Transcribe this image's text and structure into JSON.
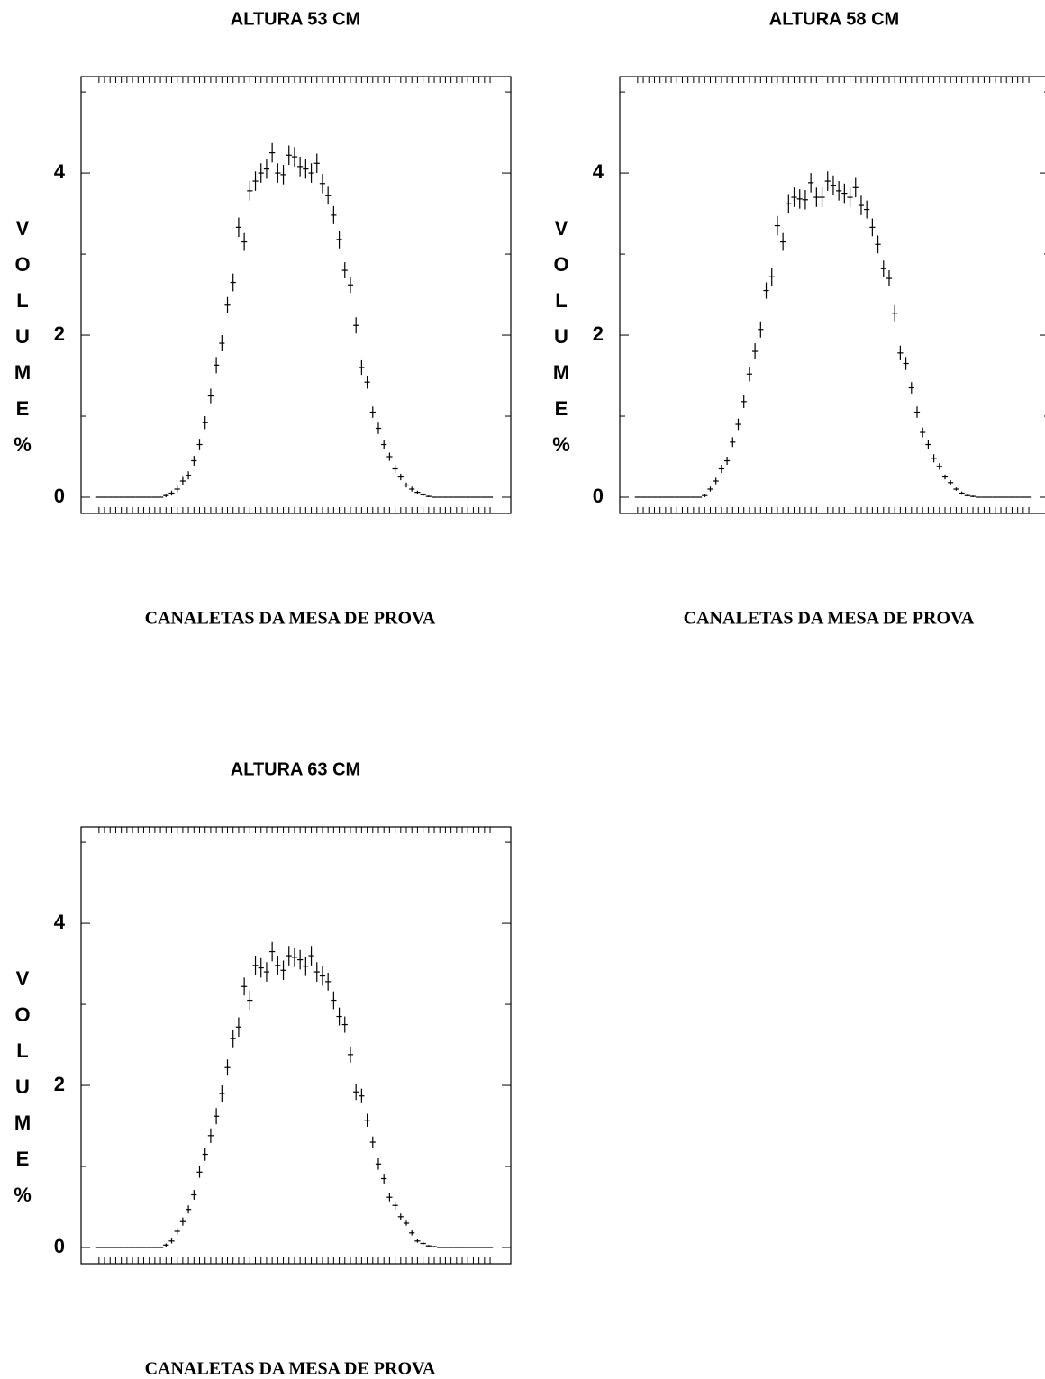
{
  "chart_data": [
    {
      "type": "errorbar",
      "title": "ALTURA 53 CM",
      "x_label": "CANALETAS DA MESA DE PROVA",
      "y_label": "VOLUME %",
      "color": "#000000",
      "x": [
        1,
        2,
        3,
        4,
        5,
        6,
        7,
        8,
        9,
        10,
        11,
        12,
        13,
        14,
        15,
        16,
        17,
        18,
        19,
        20,
        21,
        22,
        23,
        24,
        25,
        26,
        27,
        28,
        29,
        30,
        31,
        32,
        33,
        34,
        35,
        36,
        37,
        38,
        39,
        40,
        41,
        42,
        43,
        44,
        45,
        46,
        47,
        48,
        49,
        50,
        51,
        52,
        53,
        54,
        55,
        56,
        57,
        58,
        59,
        60,
        61,
        62,
        63,
        64,
        65,
        66,
        67,
        68,
        69,
        70,
        71
      ],
      "values": [
        0,
        0,
        0,
        0,
        0,
        0,
        0,
        0,
        0,
        0,
        0,
        0,
        0.02,
        0.05,
        0.1,
        0.2,
        0.27,
        0.45,
        0.65,
        0.92,
        1.25,
        1.63,
        1.9,
        2.37,
        2.65,
        3.33,
        3.15,
        3.78,
        3.9,
        4.0,
        4.05,
        4.25,
        4.0,
        3.98,
        4.22,
        4.2,
        4.08,
        4.05,
        4.0,
        4.12,
        3.87,
        3.72,
        3.48,
        3.18,
        2.8,
        2.62,
        2.12,
        1.6,
        1.42,
        1.05,
        0.85,
        0.65,
        0.5,
        0.35,
        0.25,
        0.15,
        0.1,
        0.06,
        0.03,
        0.01,
        0,
        0,
        0,
        0,
        0,
        0,
        0,
        0,
        0,
        0,
        0
      ],
      "errors": [
        0,
        0,
        0,
        0,
        0,
        0,
        0,
        0,
        0,
        0,
        0,
        0,
        0.02,
        0.03,
        0.04,
        0.05,
        0.05,
        0.06,
        0.07,
        0.08,
        0.09,
        0.1,
        0.1,
        0.1,
        0.11,
        0.12,
        0.11,
        0.12,
        0.12,
        0.12,
        0.12,
        0.12,
        0.12,
        0.12,
        0.12,
        0.12,
        0.12,
        0.12,
        0.12,
        0.12,
        0.12,
        0.11,
        0.11,
        0.11,
        0.1,
        0.1,
        0.1,
        0.09,
        0.08,
        0.07,
        0.07,
        0.06,
        0.05,
        0.05,
        0.04,
        0.03,
        0.03,
        0.02,
        0.02,
        0.01,
        0,
        0,
        0,
        0,
        0,
        0,
        0,
        0,
        0,
        0,
        0
      ],
      "xlim": [
        -2.2,
        74.7
      ],
      "ylim": [
        -0.2,
        5.19
      ],
      "yticks": [
        0,
        2,
        4
      ],
      "yminor_ticks": [
        1,
        3,
        5
      ]
    },
    {
      "type": "errorbar",
      "title": "ALTURA 58 CM",
      "x_label": "CANALETAS DA MESA DE PROVA",
      "y_label": "VOLUME %",
      "color": "#000000",
      "x": [
        1,
        2,
        3,
        4,
        5,
        6,
        7,
        8,
        9,
        10,
        11,
        12,
        13,
        14,
        15,
        16,
        17,
        18,
        19,
        20,
        21,
        22,
        23,
        24,
        25,
        26,
        27,
        28,
        29,
        30,
        31,
        32,
        33,
        34,
        35,
        36,
        37,
        38,
        39,
        40,
        41,
        42,
        43,
        44,
        45,
        46,
        47,
        48,
        49,
        50,
        51,
        52,
        53,
        54,
        55,
        56,
        57,
        58,
        59,
        60,
        61,
        62,
        63,
        64,
        65,
        66,
        67,
        68,
        69,
        70,
        71
      ],
      "values": [
        0,
        0,
        0,
        0,
        0,
        0,
        0,
        0,
        0,
        0,
        0,
        0,
        0.02,
        0.1,
        0.2,
        0.35,
        0.45,
        0.68,
        0.9,
        1.18,
        1.52,
        1.8,
        2.07,
        2.55,
        2.72,
        3.35,
        3.15,
        3.62,
        3.7,
        3.68,
        3.67,
        3.88,
        3.7,
        3.7,
        3.9,
        3.85,
        3.78,
        3.75,
        3.7,
        3.82,
        3.6,
        3.55,
        3.33,
        3.12,
        2.82,
        2.7,
        2.27,
        1.78,
        1.65,
        1.35,
        1.05,
        0.8,
        0.65,
        0.48,
        0.38,
        0.25,
        0.18,
        0.1,
        0.05,
        0.02,
        0.01,
        0,
        0,
        0,
        0,
        0,
        0,
        0,
        0,
        0,
        0
      ],
      "errors": [
        0,
        0,
        0,
        0,
        0,
        0,
        0,
        0,
        0,
        0,
        0,
        0,
        0.02,
        0.03,
        0.04,
        0.05,
        0.05,
        0.06,
        0.07,
        0.08,
        0.09,
        0.1,
        0.1,
        0.1,
        0.11,
        0.12,
        0.11,
        0.12,
        0.12,
        0.12,
        0.12,
        0.12,
        0.12,
        0.12,
        0.12,
        0.12,
        0.12,
        0.12,
        0.12,
        0.12,
        0.12,
        0.11,
        0.11,
        0.11,
        0.1,
        0.1,
        0.1,
        0.09,
        0.08,
        0.07,
        0.07,
        0.06,
        0.05,
        0.05,
        0.04,
        0.03,
        0.03,
        0.02,
        0.02,
        0.01,
        0.01,
        0,
        0,
        0,
        0,
        0,
        0,
        0,
        0,
        0,
        0
      ],
      "xlim": [
        -2.2,
        74.7
      ],
      "ylim": [
        -0.2,
        5.19
      ],
      "yticks": [
        0,
        2,
        4
      ],
      "yminor_ticks": [
        1,
        3,
        5
      ]
    },
    {
      "type": "errorbar",
      "title": "ALTURA 63 CM",
      "x_label": "CANALETAS DA MESA DE PROVA",
      "y_label": "VOLUME %",
      "color": "#000000",
      "x": [
        1,
        2,
        3,
        4,
        5,
        6,
        7,
        8,
        9,
        10,
        11,
        12,
        13,
        14,
        15,
        16,
        17,
        18,
        19,
        20,
        21,
        22,
        23,
        24,
        25,
        26,
        27,
        28,
        29,
        30,
        31,
        32,
        33,
        34,
        35,
        36,
        37,
        38,
        39,
        40,
        41,
        42,
        43,
        44,
        45,
        46,
        47,
        48,
        49,
        50,
        51,
        52,
        53,
        54,
        55,
        56,
        57,
        58,
        59,
        60,
        61,
        62,
        63,
        64,
        65,
        66,
        67,
        68,
        69,
        70,
        71
      ],
      "values": [
        0,
        0,
        0,
        0,
        0,
        0,
        0,
        0,
        0,
        0,
        0,
        0,
        0.03,
        0.08,
        0.2,
        0.32,
        0.47,
        0.65,
        0.93,
        1.15,
        1.38,
        1.62,
        1.9,
        2.22,
        2.58,
        2.72,
        3.22,
        3.05,
        3.48,
        3.45,
        3.4,
        3.65,
        3.48,
        3.42,
        3.6,
        3.58,
        3.55,
        3.47,
        3.6,
        3.4,
        3.35,
        3.28,
        3.05,
        2.85,
        2.75,
        2.38,
        1.92,
        1.87,
        1.57,
        1.3,
        1.03,
        0.85,
        0.62,
        0.52,
        0.38,
        0.3,
        0.18,
        0.08,
        0.05,
        0.02,
        0.01,
        0,
        0,
        0,
        0,
        0,
        0,
        0,
        0,
        0,
        0
      ],
      "errors": [
        0,
        0,
        0,
        0,
        0,
        0,
        0,
        0,
        0,
        0,
        0,
        0,
        0.02,
        0.03,
        0.04,
        0.05,
        0.05,
        0.06,
        0.07,
        0.08,
        0.09,
        0.1,
        0.1,
        0.1,
        0.11,
        0.12,
        0.11,
        0.12,
        0.12,
        0.12,
        0.12,
        0.12,
        0.12,
        0.12,
        0.12,
        0.12,
        0.12,
        0.12,
        0.12,
        0.12,
        0.12,
        0.11,
        0.11,
        0.11,
        0.1,
        0.1,
        0.1,
        0.09,
        0.08,
        0.07,
        0.07,
        0.06,
        0.05,
        0.05,
        0.04,
        0.03,
        0.03,
        0.02,
        0.02,
        0.01,
        0.01,
        0,
        0,
        0,
        0,
        0,
        0,
        0,
        0,
        0,
        0
      ],
      "xlim": [
        -2.2,
        74.7
      ],
      "ylim": [
        -0.2,
        5.19
      ],
      "yticks": [
        0,
        2,
        4
      ],
      "yminor_ticks": [
        1,
        3,
        5
      ]
    }
  ]
}
